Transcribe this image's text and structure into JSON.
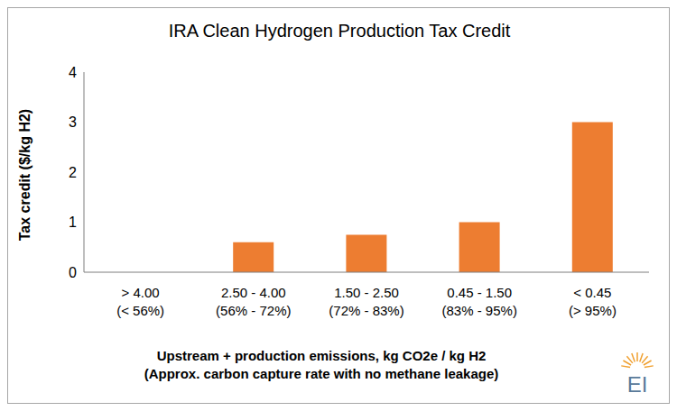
{
  "chart_data": {
    "type": "bar",
    "title": "IRA Clean Hydrogen Production Tax Credit",
    "ylabel": "Tax credit ($/kg H2)",
    "xlabel": "Upstream + production emissions, kg CO2e / kg H2\n(Approx. carbon capture rate with no methane leakage)",
    "categories": [
      "> 4.00\n(< 56%)",
      "2.50 - 4.00\n(56% - 72%)",
      "1.50 - 2.50\n(72% - 83%)",
      "0.45 - 1.50\n(83% - 95%)",
      "< 0.45\n(> 95%)"
    ],
    "values": [
      0,
      0.6,
      0.75,
      1,
      3
    ],
    "color": "#ed7d31",
    "ylim": [
      0,
      4
    ],
    "yticks": [
      0,
      1,
      2,
      3,
      4
    ],
    "grid": false,
    "annotations": [
      "EI"
    ]
  }
}
